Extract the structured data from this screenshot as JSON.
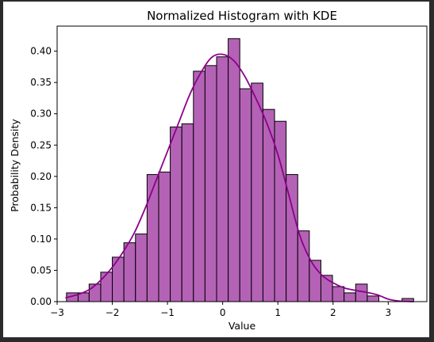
{
  "chart_data": {
    "type": "bar",
    "title": "Normalized Histogram with KDE",
    "xlabel": "Value",
    "ylabel": "Probability Density",
    "xlim": [
      -3.0,
      3.7
    ],
    "ylim": [
      0.0,
      0.44
    ],
    "xticks": [
      -3,
      -2,
      -1,
      0,
      1,
      2,
      3
    ],
    "xtick_labels": [
      "−3",
      "−2",
      "−1",
      "0",
      "1",
      "2",
      "3"
    ],
    "yticks": [
      0.0,
      0.05,
      0.1,
      0.15,
      0.2,
      0.25,
      0.3,
      0.35,
      0.4
    ],
    "ytick_labels": [
      "0.00",
      "0.05",
      "0.10",
      "0.15",
      "0.20",
      "0.25",
      "0.30",
      "0.35",
      "0.40"
    ],
    "grid": false,
    "bar_color": "#b05ab2",
    "bar_edge_color": "#000000",
    "kde_color": "#8b008b",
    "bins": [
      {
        "x0": -2.83,
        "x1": -2.62,
        "value": 0.014
      },
      {
        "x0": -2.62,
        "x1": -2.42,
        "value": 0.014
      },
      {
        "x0": -2.42,
        "x1": -2.21,
        "value": 0.028
      },
      {
        "x0": -2.21,
        "x1": -2.0,
        "value": 0.047
      },
      {
        "x0": -2.0,
        "x1": -1.79,
        "value": 0.071
      },
      {
        "x0": -1.79,
        "x1": -1.58,
        "value": 0.094
      },
      {
        "x0": -1.58,
        "x1": -1.37,
        "value": 0.108
      },
      {
        "x0": -1.37,
        "x1": -1.16,
        "value": 0.203
      },
      {
        "x0": -1.16,
        "x1": -0.95,
        "value": 0.207
      },
      {
        "x0": -0.95,
        "x1": -0.74,
        "value": 0.279
      },
      {
        "x0": -0.74,
        "x1": -0.53,
        "value": 0.284
      },
      {
        "x0": -0.53,
        "x1": -0.32,
        "value": 0.368
      },
      {
        "x0": -0.32,
        "x1": -0.11,
        "value": 0.377
      },
      {
        "x0": -0.11,
        "x1": 0.1,
        "value": 0.391
      },
      {
        "x0": 0.1,
        "x1": 0.31,
        "value": 0.42
      },
      {
        "x0": 0.31,
        "x1": 0.52,
        "value": 0.34
      },
      {
        "x0": 0.52,
        "x1": 0.73,
        "value": 0.349
      },
      {
        "x0": 0.73,
        "x1": 0.94,
        "value": 0.307
      },
      {
        "x0": 0.94,
        "x1": 1.15,
        "value": 0.288
      },
      {
        "x0": 1.15,
        "x1": 1.36,
        "value": 0.203
      },
      {
        "x0": 1.36,
        "x1": 1.57,
        "value": 0.113
      },
      {
        "x0": 1.57,
        "x1": 1.78,
        "value": 0.066
      },
      {
        "x0": 1.78,
        "x1": 1.99,
        "value": 0.042
      },
      {
        "x0": 1.99,
        "x1": 2.2,
        "value": 0.024
      },
      {
        "x0": 2.2,
        "x1": 2.41,
        "value": 0.014
      },
      {
        "x0": 2.41,
        "x1": 2.62,
        "value": 0.028
      },
      {
        "x0": 2.62,
        "x1": 2.83,
        "value": 0.009
      },
      {
        "x0": 3.25,
        "x1": 3.46,
        "value": 0.005
      }
    ],
    "kde": {
      "x": [
        -2.85,
        -2.6,
        -2.4,
        -2.2,
        -2.0,
        -1.8,
        -1.6,
        -1.4,
        -1.2,
        -1.0,
        -0.8,
        -0.6,
        -0.4,
        -0.2,
        0.0,
        0.2,
        0.4,
        0.6,
        0.8,
        1.0,
        1.2,
        1.4,
        1.6,
        1.8,
        2.0,
        2.2,
        2.4,
        2.6,
        2.8,
        3.0,
        3.2,
        3.46
      ],
      "y": [
        0.006,
        0.012,
        0.02,
        0.035,
        0.055,
        0.08,
        0.11,
        0.15,
        0.195,
        0.24,
        0.285,
        0.33,
        0.365,
        0.39,
        0.395,
        0.385,
        0.36,
        0.325,
        0.285,
        0.235,
        0.17,
        0.105,
        0.065,
        0.042,
        0.03,
        0.022,
        0.018,
        0.015,
        0.011,
        0.004,
        0.001,
        0.0
      ]
    }
  }
}
